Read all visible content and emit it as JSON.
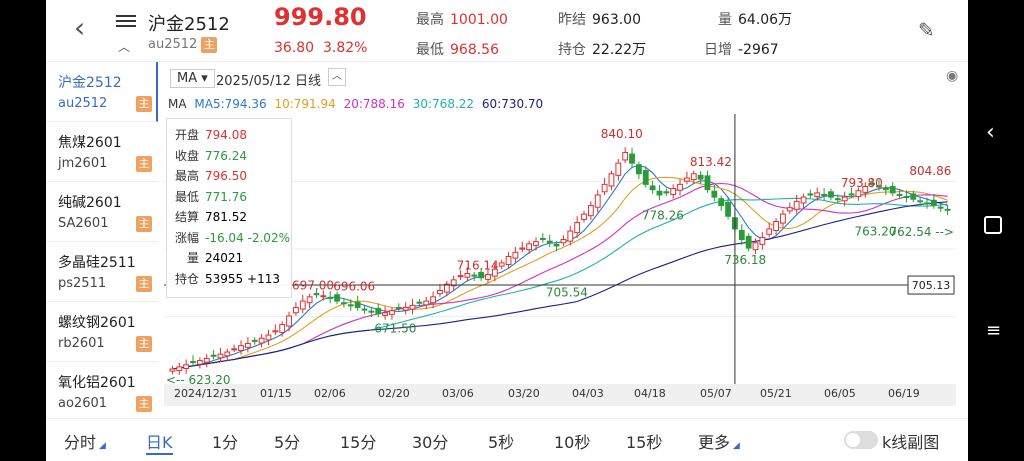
{
  "header": {
    "title": "沪金2512",
    "code": "au2512",
    "badge": "主",
    "price": "999.80",
    "change": "36.80",
    "change_pct": "3.82%",
    "high_label": "最高",
    "high": "1001.00",
    "low_label": "最低",
    "low": "968.56",
    "prev_label": "昨结",
    "prev": "963.00",
    "hold_label": "持仓",
    "hold": "22.22万",
    "vol_label": "量",
    "vol": "64.06万",
    "day_inc_label": "日增",
    "day_inc": "-2967"
  },
  "sidebar": {
    "items": [
      {
        "name": "沪金2512",
        "code": "au2512",
        "badge": "主"
      },
      {
        "name": "焦煤2601",
        "code": "jm2601",
        "badge": "主"
      },
      {
        "name": "纯碱2601",
        "code": "SA2601",
        "badge": "主"
      },
      {
        "name": "多晶硅2511",
        "code": "ps2511",
        "badge": "主"
      },
      {
        "name": "螺纹钢2601",
        "code": "rb2601",
        "badge": "主"
      },
      {
        "name": "氧化铝2601",
        "code": "ao2601",
        "badge": "主"
      }
    ]
  },
  "chart_top": {
    "ma_select": "MA",
    "date_label": "2025/05/12 日线"
  },
  "ma": {
    "label": "MA",
    "ma5": "MA5:794.36",
    "ma10": "10:791.94",
    "ma20": "20:788.16",
    "ma30": "30:768.22",
    "ma60": "60:730.70",
    "colors": {
      "ma5": "#2a7ac8",
      "ma10": "#e0a020",
      "ma20": "#d030c0",
      "ma30": "#20b0b0",
      "ma60": "#202080"
    }
  },
  "info": {
    "open_label": "开盘",
    "open": "794.08",
    "close_label": "收盘",
    "close": "776.24",
    "high_label": "最高",
    "high": "796.50",
    "low_label": "最低",
    "low": "771.76",
    "settle_label": "结算",
    "settle": "781.52",
    "chg_label": "涨幅",
    "chg": "-16.04",
    "chg_pct": "-2.02%",
    "vol_label": "量",
    "vol": "24021",
    "hold_label": "持仓",
    "hold": "53955",
    "hold_delta": "+113"
  },
  "x_axis": [
    "2024/12/31",
    "01/15",
    "02/06",
    "02/20",
    "03/06",
    "03/20",
    "04/03",
    "04/18",
    "05/07",
    "05/21",
    "06/05",
    "06/19"
  ],
  "crosshair_price": "705.13",
  "chart_data": {
    "type": "candlestick",
    "annotations": [
      {
        "label": "840.10",
        "value": 840.1,
        "kind": "high"
      },
      {
        "label": "813.42",
        "value": 813.42,
        "kind": "high"
      },
      {
        "label": "804.86",
        "value": 804.86,
        "kind": "high"
      },
      {
        "label": "793.80",
        "value": 793.8,
        "kind": "high"
      },
      {
        "label": "778.26",
        "value": 778.26,
        "kind": "low"
      },
      {
        "label": "763.20",
        "value": 763.2,
        "kind": "low"
      },
      {
        "label": "762.54 -->",
        "value": 762.54,
        "kind": "low"
      },
      {
        "label": "736.18",
        "value": 736.18,
        "kind": "low"
      },
      {
        "label": "716.14",
        "value": 716.14,
        "kind": "high"
      },
      {
        "label": "705.54",
        "value": 705.54,
        "kind": "low"
      },
      {
        "label": "697.00",
        "value": 697.0,
        "kind": "high"
      },
      {
        "label": "696.06",
        "value": 696.06,
        "kind": "high"
      },
      {
        "label": "671.50",
        "value": 671.5,
        "kind": "low"
      },
      {
        "label": "<-- 623.20",
        "value": 623.2,
        "kind": "low"
      }
    ],
    "closes": [
      626,
      628,
      630,
      632,
      634,
      636,
      638,
      640,
      642,
      645,
      648,
      650,
      652,
      655,
      658,
      662,
      668,
      676,
      684,
      690,
      694,
      696,
      695,
      693,
      690,
      688,
      686,
      684,
      682,
      680,
      678,
      679,
      681,
      683,
      684,
      686,
      688,
      690,
      694,
      700,
      706,
      710,
      714,
      716,
      714,
      712,
      715,
      720,
      726,
      732,
      736,
      740,
      744,
      746,
      748,
      745,
      742,
      748,
      756,
      764,
      772,
      780,
      790,
      800,
      810,
      820,
      830,
      820,
      810,
      800,
      795,
      790,
      792,
      796,
      800,
      806,
      810,
      805,
      795,
      788,
      780,
      770,
      758,
      748,
      740,
      745,
      750,
      758,
      765,
      772,
      778,
      784,
      788,
      790,
      792,
      790,
      788,
      786,
      788,
      790,
      794,
      798,
      800,
      798,
      795,
      792,
      790,
      788,
      786,
      784,
      782,
      780,
      778,
      776
    ]
  },
  "tabs": [
    "分时",
    "日K",
    "1分",
    "5分",
    "15分",
    "30分",
    "5秒",
    "10秒",
    "15秒",
    "更多"
  ],
  "active_tab": "日K",
  "toggle_label": "k线副图"
}
